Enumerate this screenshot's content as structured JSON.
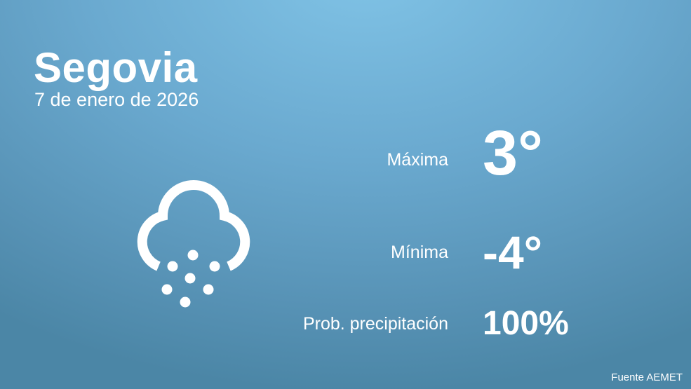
{
  "location": {
    "city": "Segovia",
    "date": "7 de enero de 2026"
  },
  "weather_icon": "snow-cloud-icon",
  "stats": {
    "max_label": "Máxima",
    "max_value": "3°",
    "min_label": "Mínima",
    "min_value": "-4°",
    "precip_label": "Prob. precipitación",
    "precip_value": "100%"
  },
  "source": "Fuente AEMET"
}
